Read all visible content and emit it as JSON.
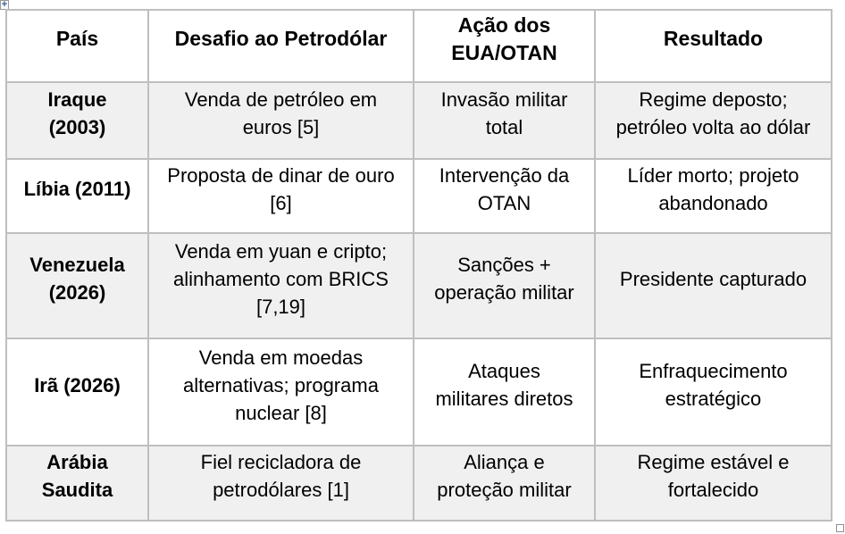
{
  "colors": {
    "row_shade": "#f0f0f0",
    "grid_border": "#bfbfbf",
    "text": "#000000",
    "move_handle_plus": "#2e5c9e"
  },
  "handles": {
    "move_handle_glyph": "+"
  },
  "table": {
    "headers": [
      "País",
      "Desafio ao Petrodólar",
      "Ação dos\nEUA/OTAN",
      "Resultado"
    ],
    "rows": [
      {
        "cells": [
          "Iraque\n(2003)",
          "Venda de petróleo em\neuros [5]",
          "Invasão militar\ntotal",
          "Regime deposto;\npetróleo volta ao dólar"
        ]
      },
      {
        "cells": [
          "Líbia (2011)",
          "Proposta de dinar de ouro\n[6]",
          "Intervenção da\nOTAN",
          "Líder morto; projeto\nabandonado"
        ]
      },
      {
        "cells": [
          "Venezuela\n(2026)",
          "Venda em yuan e cripto;\nalinhamento com BRICS\n[7,19]",
          "Sanções +\noperação militar",
          "Presidente capturado"
        ]
      },
      {
        "cells": [
          "Irã (2026)",
          "Venda em moedas\nalternativas; programa\nnuclear [8]",
          "Ataques\nmilitares diretos",
          "Enfraquecimento\nestratégico"
        ]
      },
      {
        "cells": [
          "Arábia\nSaudita",
          "Fiel recicladora de\npetrodólares [1]",
          "Aliança e\nproteção militar",
          "Regime estável e\nfortalecido"
        ]
      }
    ]
  }
}
